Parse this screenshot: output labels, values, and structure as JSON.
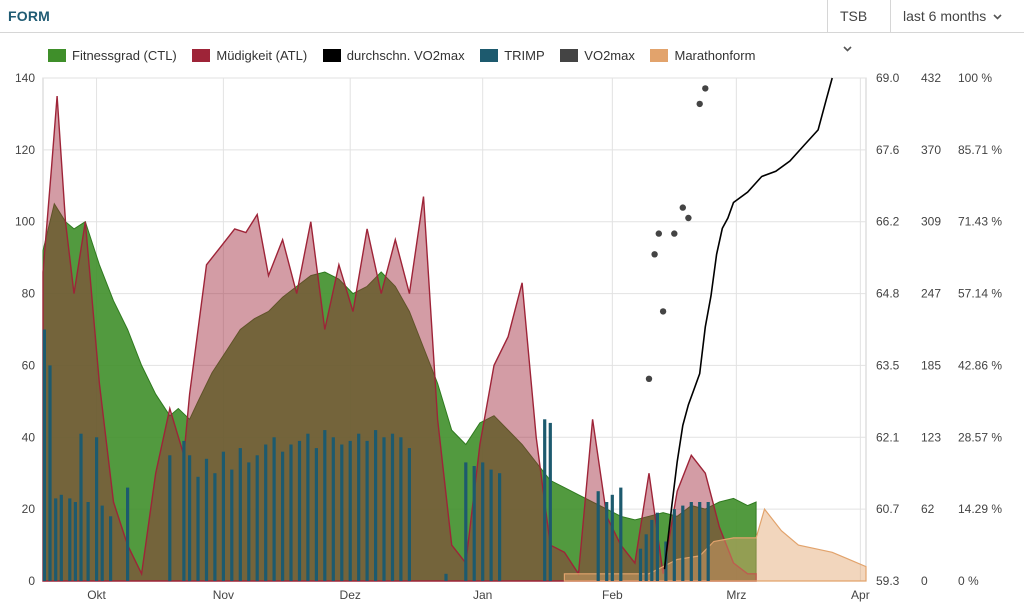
{
  "header": {
    "title": "FORM",
    "metric_select": "TSB",
    "range_select": "last 6 months"
  },
  "colors": {
    "ctl": "#3f8f2a",
    "atl": "#9e2438",
    "vo2avg": "#000000",
    "trimp": "#1d5a6e",
    "vo2": "#444444",
    "marathon": "#e2a36c"
  },
  "chart_data": {
    "type": "area",
    "legend": [
      "Fitnessgrad (CTL)",
      "Müdigkeit (ATL)",
      "durchschn. VO2max",
      "TRIMP",
      "VO2max",
      "Marathonform"
    ],
    "x_ticks": [
      "Okt",
      "Nov",
      "Dez",
      "Jan",
      "Feb",
      "Mrz",
      "Apr"
    ],
    "y_left": {
      "ticks": [
        "0",
        "20",
        "40",
        "60",
        "80",
        "100",
        "120",
        "140"
      ],
      "ylim": [
        0,
        140
      ]
    },
    "y_vo2": {
      "ticks": [
        "59.3",
        "60.7",
        "62.1",
        "63.5",
        "64.8",
        "66.2",
        "67.6",
        "69.0"
      ],
      "ylim": [
        59.3,
        69.0
      ]
    },
    "y_trimp": {
      "ticks": [
        "0",
        "62",
        "123",
        "185",
        "247",
        "309",
        "370",
        "432"
      ],
      "ylim": [
        0,
        432
      ]
    },
    "y_percent": {
      "ticks": [
        "0 %",
        "14.29 %",
        "28.57 %",
        "42.86 %",
        "57.14 %",
        "71.43 %",
        "85.71 %",
        "100 %"
      ],
      "ylim": [
        0,
        100
      ]
    },
    "weeks": 19.7,
    "ctl": [
      [
        0,
        92
      ],
      [
        0.4,
        105
      ],
      [
        0.8,
        100
      ],
      [
        1.1,
        98
      ],
      [
        1.5,
        100
      ],
      [
        2,
        88
      ],
      [
        2.5,
        78
      ],
      [
        3,
        70
      ],
      [
        3.5,
        60
      ],
      [
        4,
        52
      ],
      [
        4.5,
        46
      ],
      [
        4.8,
        48
      ],
      [
        5.2,
        45
      ],
      [
        5.5,
        50
      ],
      [
        6,
        58
      ],
      [
        6.5,
        64
      ],
      [
        7,
        70
      ],
      [
        7.5,
        73
      ],
      [
        8,
        75
      ],
      [
        8.5,
        79
      ],
      [
        9,
        82
      ],
      [
        9.5,
        85
      ],
      [
        10,
        86
      ],
      [
        10.5,
        84
      ],
      [
        11,
        80
      ],
      [
        11.5,
        82
      ],
      [
        12,
        86
      ],
      [
        12.5,
        82
      ],
      [
        13,
        75
      ],
      [
        13.5,
        65
      ],
      [
        14,
        55
      ],
      [
        14.5,
        42
      ],
      [
        15,
        38
      ],
      [
        15.5,
        44
      ],
      [
        16,
        46
      ],
      [
        16.5,
        42
      ],
      [
        17,
        38
      ],
      [
        17.5,
        33
      ],
      [
        18,
        28
      ],
      [
        18.5,
        26
      ],
      [
        19,
        24
      ],
      [
        19.5,
        22
      ],
      [
        20,
        20
      ],
      [
        20.5,
        18
      ],
      [
        21,
        17
      ],
      [
        21.5,
        18
      ],
      [
        22,
        19
      ],
      [
        22.5,
        18
      ],
      [
        23,
        21
      ],
      [
        23.5,
        20
      ],
      [
        24,
        22
      ],
      [
        24.5,
        23
      ],
      [
        25,
        21
      ],
      [
        25.3,
        22
      ]
    ],
    "atl": [
      [
        0,
        86
      ],
      [
        0.3,
        115
      ],
      [
        0.5,
        135
      ],
      [
        0.8,
        100
      ],
      [
        1.1,
        80
      ],
      [
        1.5,
        100
      ],
      [
        2,
        55
      ],
      [
        2.5,
        22
      ],
      [
        3,
        10
      ],
      [
        3.5,
        2
      ],
      [
        4,
        30
      ],
      [
        4.5,
        48
      ],
      [
        5,
        35
      ],
      [
        5.2,
        52
      ],
      [
        5.8,
        88
      ],
      [
        6.3,
        93
      ],
      [
        6.8,
        98
      ],
      [
        7.2,
        97
      ],
      [
        7.6,
        102
      ],
      [
        8,
        85
      ],
      [
        8.5,
        95
      ],
      [
        9,
        80
      ],
      [
        9.5,
        100
      ],
      [
        10,
        70
      ],
      [
        10.5,
        88
      ],
      [
        11,
        75
      ],
      [
        11.5,
        98
      ],
      [
        12,
        80
      ],
      [
        12.5,
        95
      ],
      [
        13,
        80
      ],
      [
        13.5,
        107
      ],
      [
        14,
        45
      ],
      [
        14.5,
        10
      ],
      [
        15,
        5
      ],
      [
        15.5,
        38
      ],
      [
        16,
        60
      ],
      [
        16.5,
        68
      ],
      [
        17,
        83
      ],
      [
        17.5,
        40
      ],
      [
        18,
        10
      ],
      [
        18.5,
        8
      ],
      [
        19,
        2
      ],
      [
        19.5,
        45
      ],
      [
        20,
        18
      ],
      [
        20.5,
        10
      ],
      [
        21,
        5
      ],
      [
        21.5,
        30
      ],
      [
        22,
        2
      ],
      [
        22.5,
        25
      ],
      [
        23,
        35
      ],
      [
        23.5,
        30
      ],
      [
        24,
        15
      ],
      [
        24.5,
        5
      ],
      [
        25,
        2
      ],
      [
        25.3,
        2
      ]
    ],
    "trimp": [
      [
        0.05,
        70
      ],
      [
        0.25,
        60
      ],
      [
        0.45,
        23
      ],
      [
        0.65,
        24
      ],
      [
        0.95,
        23
      ],
      [
        1.15,
        22
      ],
      [
        1.35,
        41
      ],
      [
        1.6,
        22
      ],
      [
        1.9,
        40
      ],
      [
        2.1,
        21
      ],
      [
        2.4,
        18
      ],
      [
        3,
        26
      ],
      [
        4.5,
        35
      ],
      [
        5,
        39
      ],
      [
        5.2,
        35
      ],
      [
        5.5,
        29
      ],
      [
        5.8,
        34
      ],
      [
        6.1,
        30
      ],
      [
        6.4,
        36
      ],
      [
        6.7,
        31
      ],
      [
        7,
        37
      ],
      [
        7.3,
        33
      ],
      [
        7.6,
        35
      ],
      [
        7.9,
        38
      ],
      [
        8.2,
        40
      ],
      [
        8.5,
        36
      ],
      [
        8.8,
        38
      ],
      [
        9.1,
        39
      ],
      [
        9.4,
        41
      ],
      [
        9.7,
        37
      ],
      [
        10,
        42
      ],
      [
        10.3,
        40
      ],
      [
        10.6,
        38
      ],
      [
        10.9,
        39
      ],
      [
        11.2,
        41
      ],
      [
        11.5,
        39
      ],
      [
        11.8,
        42
      ],
      [
        12.1,
        40
      ],
      [
        12.4,
        41
      ],
      [
        12.7,
        40
      ],
      [
        13,
        37
      ],
      [
        14.3,
        2
      ],
      [
        15,
        33
      ],
      [
        15.3,
        32
      ],
      [
        15.6,
        33
      ],
      [
        15.9,
        31
      ],
      [
        16.2,
        30
      ],
      [
        17.8,
        45
      ],
      [
        18,
        44
      ],
      [
        19.7,
        25
      ],
      [
        20,
        22
      ],
      [
        20.2,
        24
      ],
      [
        20.5,
        26
      ],
      [
        21.2,
        9
      ],
      [
        21.4,
        13
      ],
      [
        21.6,
        17
      ],
      [
        21.8,
        19
      ],
      [
        22.1,
        11
      ],
      [
        22.4,
        20
      ],
      [
        22.7,
        21
      ],
      [
        23.0,
        22
      ],
      [
        23.3,
        22
      ],
      [
        23.6,
        22
      ]
    ],
    "vo2avg": [
      [
        22.05,
        59.53
      ],
      [
        22.3,
        60.7
      ],
      [
        22.5,
        61.6
      ],
      [
        22.7,
        62.3
      ],
      [
        22.9,
        62.7
      ],
      [
        23.1,
        63.0
      ],
      [
        23.3,
        63.3
      ],
      [
        23.5,
        64.2
      ],
      [
        23.7,
        64.8
      ],
      [
        23.9,
        65.6
      ],
      [
        24.1,
        66.1
      ],
      [
        24.3,
        66.3
      ],
      [
        24.5,
        66.6
      ],
      [
        25,
        66.8
      ],
      [
        25.5,
        67.1
      ],
      [
        26,
        67.2
      ],
      [
        26.5,
        67.4
      ],
      [
        27,
        67.7
      ],
      [
        27.5,
        68.0
      ],
      [
        27.8,
        68.6
      ],
      [
        28,
        69.0
      ]
    ],
    "vo2_points": [
      [
        21.5,
        63.2
      ],
      [
        21.7,
        65.6
      ],
      [
        21.85,
        66.0
      ],
      [
        22.0,
        64.5
      ],
      [
        22.4,
        66.0
      ],
      [
        22.7,
        66.5
      ],
      [
        22.9,
        66.3
      ],
      [
        23.3,
        68.5
      ],
      [
        23.5,
        68.8
      ]
    ],
    "marathon": [
      [
        18.5,
        2
      ],
      [
        19.5,
        2
      ],
      [
        20.5,
        2
      ],
      [
        21.5,
        2
      ],
      [
        22.5,
        6
      ],
      [
        23.3,
        7
      ],
      [
        23.8,
        11
      ],
      [
        24.5,
        12
      ],
      [
        25.3,
        12
      ],
      [
        25.6,
        20
      ],
      [
        26.2,
        14
      ],
      [
        26.8,
        10
      ],
      [
        27.4,
        9
      ],
      [
        28,
        8
      ],
      [
        28.6,
        6
      ],
      [
        29.2,
        4
      ]
    ]
  }
}
